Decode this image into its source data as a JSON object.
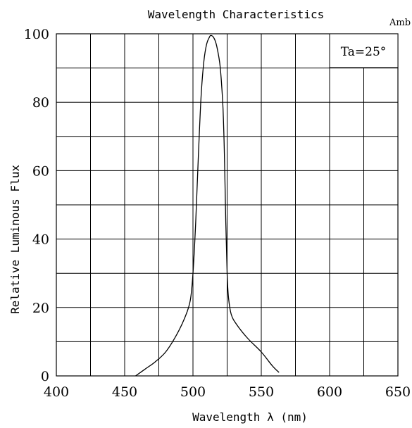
{
  "chart_data": {
    "type": "line",
    "title": "Wavelength Characteristics",
    "corner_note": "Amb",
    "xlabel": "Wavelength λ (nm)",
    "ylabel": "Relative Luminous Flux",
    "annotation": "Ta=25°",
    "xlim": [
      400,
      650
    ],
    "ylim": [
      0,
      100
    ],
    "x_ticks": [
      400,
      450,
      500,
      550,
      600,
      650
    ],
    "y_ticks": [
      0,
      20,
      40,
      60,
      80,
      100
    ],
    "x_gridlines": [
      400,
      425,
      450,
      475,
      500,
      525,
      550,
      575,
      600,
      625,
      650
    ],
    "y_gridlines": [
      0,
      10,
      20,
      30,
      40,
      50,
      60,
      70,
      80,
      90,
      100
    ],
    "grid": true,
    "series": [
      {
        "x": [
          458,
          465,
          472,
          480,
          488,
          494,
          498,
          500,
          502,
          504,
          506,
          508,
          510,
          512,
          513,
          515,
          517,
          519,
          520,
          521,
          522,
          523,
          524,
          525,
          526,
          528,
          532,
          540,
          550,
          558,
          563
        ],
        "y": [
          0,
          2,
          4,
          7,
          12,
          17,
          22,
          30,
          45,
          65,
          82,
          92,
          97,
          99,
          99.5,
          99,
          97,
          93,
          90,
          85,
          78,
          65,
          45,
          30,
          23,
          18,
          15,
          11,
          7,
          3,
          1
        ]
      }
    ]
  }
}
